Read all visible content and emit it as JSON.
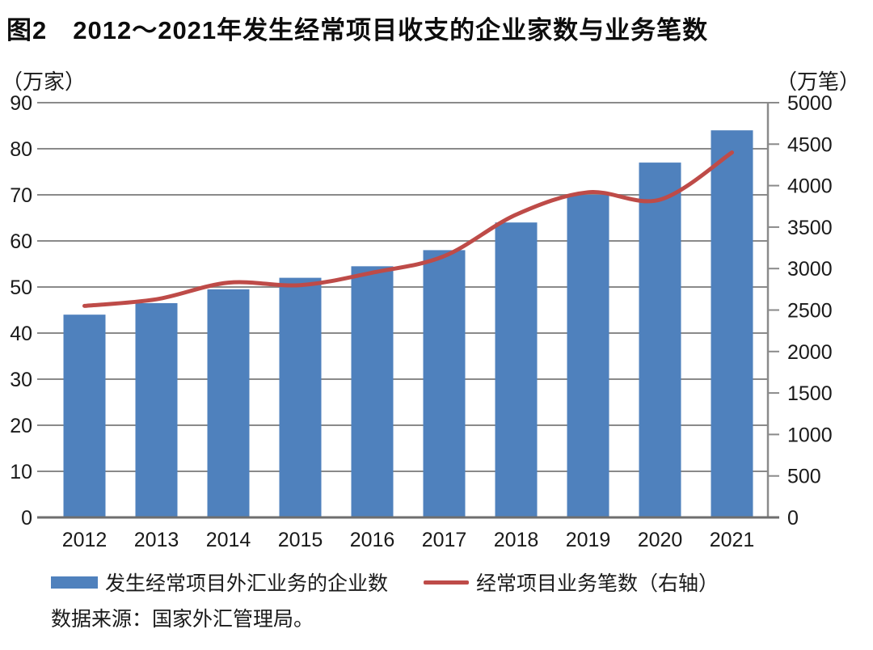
{
  "title": "图2　2012～2021年发生经常项目收支的企业家数与业务笔数",
  "chart_data": {
    "type": "bar+line",
    "categories": [
      "2012",
      "2013",
      "2014",
      "2015",
      "2016",
      "2017",
      "2018",
      "2019",
      "2020",
      "2021"
    ],
    "series": [
      {
        "name": "发生经常项目外汇业务的企业数",
        "type": "bar",
        "axis": "left",
        "unit": "万家",
        "color": "#4F81BD",
        "values": [
          44,
          46.5,
          49.5,
          52,
          54.5,
          58,
          64,
          70,
          77,
          84
        ]
      },
      {
        "name": "经常项目业务笔数（右轴）",
        "type": "line",
        "axis": "right",
        "unit": "万笔",
        "color": "#BE4B48",
        "values": [
          2550,
          2630,
          2830,
          2800,
          2950,
          3150,
          3650,
          3920,
          3830,
          4400
        ]
      }
    ],
    "left_axis": {
      "unit_label": "（万家）",
      "min": 0,
      "max": 90,
      "step": 10,
      "tick_labels": [
        "0",
        "10",
        "20",
        "30",
        "40",
        "50",
        "60",
        "70",
        "80",
        "90"
      ]
    },
    "right_axis": {
      "unit_label": "（万笔）",
      "min": 0,
      "max": 5000,
      "step": 500,
      "tick_labels": [
        "0",
        "500",
        "1000",
        "1500",
        "2000",
        "2500",
        "3000",
        "3500",
        "4000",
        "4500",
        "5000"
      ]
    },
    "grid": true,
    "legend_position": "bottom",
    "colors": {
      "bar": "#4F81BD",
      "line": "#BE4B48",
      "gridline": "#8a8a8a",
      "baseline": "#6e6e6e",
      "tick_text": "#1a1a1a"
    }
  },
  "legend": {
    "items": [
      {
        "label": "发生经常项目外汇业务的企业数"
      },
      {
        "label": "经常项目业务笔数（右轴）"
      }
    ]
  },
  "source": "数据来源：国家外汇管理局。"
}
